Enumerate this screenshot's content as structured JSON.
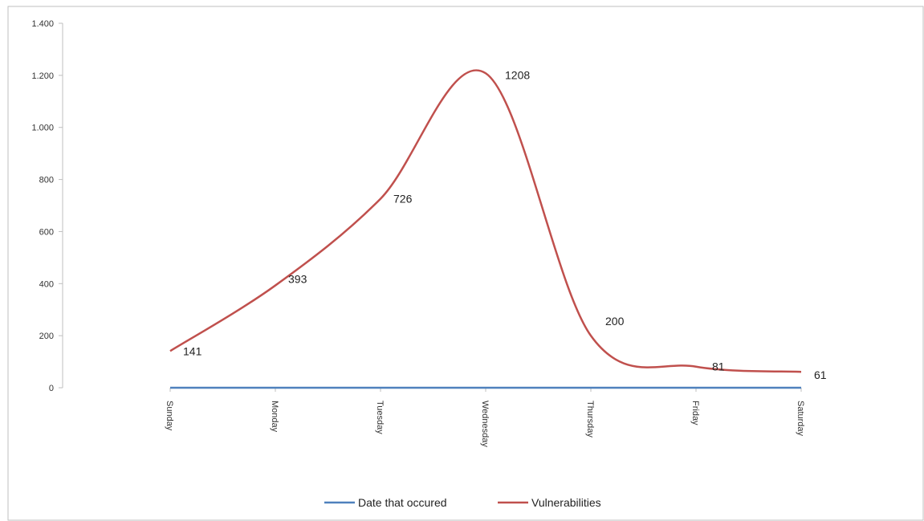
{
  "chart_data": {
    "type": "line",
    "title": "",
    "xlabel": "",
    "ylabel": "",
    "categories": [
      "Sunday",
      "Monday",
      "Tuesday",
      "Wednesday",
      "Thursday",
      "Friday",
      "Saturday"
    ],
    "ylim": [
      0,
      1400
    ],
    "yticks": [
      0,
      200,
      400,
      600,
      800,
      1000,
      1200,
      1400
    ],
    "ytick_labels": [
      "0",
      "200",
      "400",
      "600",
      "800",
      "1.000",
      "1.200",
      "1.400"
    ],
    "grid": false,
    "smooth": true,
    "legend_position": "bottom",
    "series": [
      {
        "name": "Date that occured",
        "color": "#4F81BD",
        "values": [
          0,
          0,
          0,
          0,
          0,
          0,
          0
        ],
        "data_labels": []
      },
      {
        "name": "Vulnerabilities",
        "color": "#C0504D",
        "values": [
          141,
          393,
          726,
          1208,
          200,
          81,
          61
        ],
        "data_labels": [
          "141",
          "393",
          "726",
          "1208",
          "200",
          "81",
          "61"
        ]
      }
    ]
  }
}
